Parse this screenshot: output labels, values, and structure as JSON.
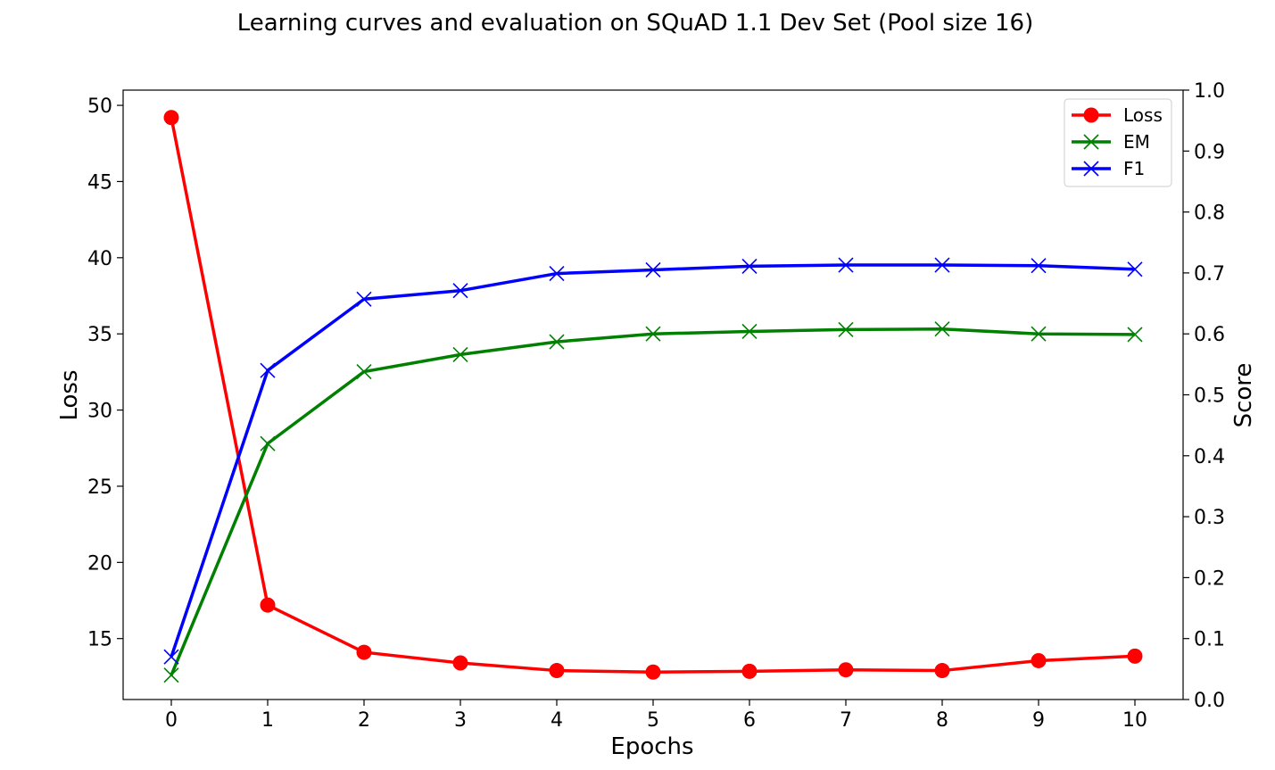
{
  "chart_data": {
    "type": "line",
    "title": "Learning curves and evaluation on SQuAD 1.1 Dev Set (Pool size 16)",
    "xlabel": "Epochs",
    "ylabel_left": "Loss",
    "ylabel_right": "Score",
    "x": [
      0,
      1,
      2,
      3,
      4,
      5,
      6,
      7,
      8,
      9,
      10
    ],
    "x_ticks": [
      "0",
      "1",
      "2",
      "3",
      "4",
      "5",
      "6",
      "7",
      "8",
      "9",
      "10"
    ],
    "xlim": [
      -0.5,
      10.5
    ],
    "ylim_left": [
      11,
      51
    ],
    "y_ticks_left": [
      "15",
      "20",
      "25",
      "30",
      "35",
      "40",
      "45",
      "50"
    ],
    "ylim_right": [
      0.0,
      1.0
    ],
    "y_ticks_right": [
      "0.0",
      "0.1",
      "0.2",
      "0.3",
      "0.4",
      "0.5",
      "0.6",
      "0.7",
      "0.8",
      "0.9",
      "1.0"
    ],
    "grid": false,
    "legend_position": "top-right",
    "series": [
      {
        "name": "Loss",
        "axis": "left",
        "color": "#ff0000",
        "marker": "circle",
        "values": [
          49.2,
          17.2,
          14.1,
          13.4,
          12.9,
          12.8,
          12.85,
          12.95,
          12.9,
          13.55,
          13.85
        ]
      },
      {
        "name": "EM",
        "axis": "right",
        "color": "#008000",
        "marker": "x",
        "values": [
          0.04,
          0.42,
          0.538,
          0.566,
          0.587,
          0.6,
          0.604,
          0.607,
          0.608,
          0.6,
          0.599
        ]
      },
      {
        "name": "F1",
        "axis": "right",
        "color": "#0000ff",
        "marker": "x",
        "values": [
          0.07,
          0.54,
          0.657,
          0.671,
          0.699,
          0.705,
          0.711,
          0.713,
          0.713,
          0.712,
          0.706
        ]
      }
    ]
  }
}
